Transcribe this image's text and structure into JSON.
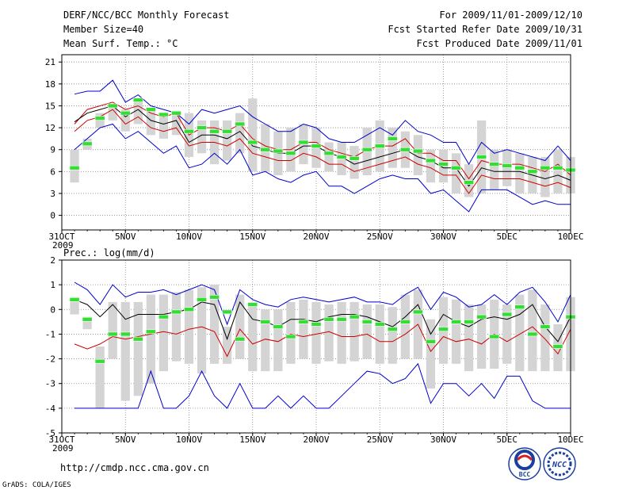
{
  "header": {
    "title": "DERF/NCC/BCC Monthly Forecast",
    "member_size": "Member Size=40",
    "variable": "Mean Surf. Temp.: °C",
    "period": "For 2009/11/01-2009/12/10",
    "started": "Fcst Started Refer Date 2009/10/31",
    "produced": "Fcst Produced Date 2009/11/01"
  },
  "footer": {
    "url": "http://cmdp.ncc.cma.gov.cn",
    "credit": "GrADS: COLA/IGES",
    "logo_bcc": "BCC",
    "logo_ncc": "NCC"
  },
  "colors": {
    "grid": "#888888",
    "box": "#d4d4d4",
    "mean": "#000000",
    "band": "#cc0000",
    "extreme": "#0000cc",
    "obs": "#33dd33"
  },
  "chart_data": [
    {
      "type": "line",
      "title": "Mean Surf. Temp.: °C",
      "ylim": [
        -2,
        22
      ],
      "yticks": [
        "0",
        "3",
        "6",
        "9",
        "12",
        "15",
        "18",
        "21"
      ],
      "xticks": [
        {
          "day": 0,
          "label": "31OCT",
          "sub": "2009"
        },
        {
          "day": 5,
          "label": "5NOV"
        },
        {
          "day": 10,
          "label": "10NOV"
        },
        {
          "day": 15,
          "label": "15NOV"
        },
        {
          "day": 20,
          "label": "20NOV"
        },
        {
          "day": 25,
          "label": "25NOV"
        },
        {
          "day": 30,
          "label": "30NOV"
        },
        {
          "day": 35,
          "label": "5DEC"
        },
        {
          "day": 40,
          "label": "10DEC"
        }
      ],
      "days": [
        1,
        2,
        3,
        4,
        5,
        6,
        7,
        8,
        9,
        10,
        11,
        12,
        13,
        14,
        15,
        16,
        17,
        18,
        19,
        20,
        21,
        22,
        23,
        24,
        25,
        26,
        27,
        28,
        29,
        30,
        31,
        32,
        33,
        34,
        35,
        36,
        37,
        38,
        39,
        40
      ],
      "series": [
        {
          "name": "max",
          "role": "extreme",
          "values": [
            16.6,
            17,
            17,
            18.5,
            15.5,
            16.5,
            15,
            14.5,
            14,
            12.5,
            14.5,
            14,
            14.5,
            15,
            13.5,
            12.5,
            11.5,
            11.5,
            12.5,
            12,
            10.5,
            10,
            10,
            11,
            12,
            11,
            13,
            11.5,
            11,
            10,
            10,
            7,
            10,
            8.5,
            9,
            8.5,
            8,
            7.5,
            9.5,
            7.5
          ]
        },
        {
          "name": "upper",
          "role": "band",
          "values": [
            12.5,
            14.5,
            15,
            15.5,
            14.5,
            15,
            14,
            13.5,
            14,
            11,
            12,
            12,
            11.5,
            12.5,
            10.5,
            9.5,
            9,
            9,
            10,
            10,
            9,
            8.5,
            8,
            9,
            9.5,
            9.5,
            10.5,
            8.5,
            8.5,
            7.5,
            7.5,
            5,
            7.5,
            7,
            7,
            7,
            6.5,
            6,
            7,
            5.5
          ]
        },
        {
          "name": "mean",
          "role": "mean",
          "values": [
            12.8,
            14,
            14.5,
            15,
            13.5,
            14.5,
            13,
            12.5,
            13,
            10,
            11,
            11,
            10.5,
            11.5,
            9.5,
            9,
            8.5,
            8.5,
            9.5,
            9.5,
            8.5,
            8,
            7,
            7.5,
            8,
            8.5,
            9,
            8,
            7.5,
            6.5,
            6.5,
            4,
            6.5,
            6,
            6,
            6,
            5.5,
            5,
            5.5,
            4.8
          ]
        },
        {
          "name": "lower",
          "role": "band",
          "values": [
            11.5,
            13,
            13.5,
            14.5,
            12.5,
            13.5,
            12,
            11.5,
            12,
            9.5,
            10,
            10,
            9.5,
            10.5,
            8.5,
            8,
            7.5,
            7.5,
            8.5,
            8,
            7,
            7,
            6,
            6.5,
            7,
            7.5,
            8,
            7,
            6.5,
            5.5,
            5.5,
            3,
            5.5,
            5,
            5,
            5,
            4.5,
            4,
            4.5,
            3.8
          ]
        },
        {
          "name": "min",
          "role": "extreme",
          "values": [
            9,
            10.5,
            12,
            12.5,
            10.5,
            11.5,
            10,
            8.5,
            9.5,
            6.5,
            7,
            8.5,
            7,
            9,
            5.5,
            6,
            5,
            4.5,
            5.5,
            6,
            4,
            4,
            3,
            4,
            5,
            5.5,
            5,
            5,
            3,
            3.5,
            2,
            0.5,
            3.5,
            3.5,
            3.5,
            2.5,
            1.5,
            2,
            1.5,
            1.5
          ]
        },
        {
          "name": "observed",
          "role": "obs",
          "values": [
            6.5,
            9.8,
            13.3,
            15,
            14,
            15.8,
            14.5,
            13.8,
            14,
            11.5,
            12,
            11.5,
            11.5,
            12.5,
            10,
            9,
            8.8,
            8.5,
            10,
            9.5,
            8.5,
            8,
            7.8,
            9,
            9.5,
            10.5,
            9,
            8.8,
            7.5,
            7,
            6.5,
            4.5,
            8,
            7,
            6.8,
            6.5,
            6,
            6.5,
            6.5,
            6.2
          ]
        }
      ],
      "boxes_lo": [
        4.5,
        9,
        12,
        13,
        11.5,
        12.5,
        11,
        10.5,
        11,
        8,
        8.5,
        7,
        7.5,
        8.5,
        6,
        6,
        5.5,
        6,
        7,
        6.5,
        6,
        5.5,
        5,
        5.5,
        6,
        6.5,
        6.5,
        5.5,
        4.5,
        4.5,
        3,
        2.5,
        3,
        3.5,
        4,
        3,
        3,
        2.5,
        3,
        3
      ],
      "boxes_hi": [
        9,
        10.5,
        14,
        15,
        14.5,
        15.5,
        14.5,
        13.5,
        14,
        14,
        13,
        13,
        13,
        14,
        16,
        12.5,
        11.5,
        12,
        12.5,
        12,
        10,
        10,
        9.5,
        12,
        13,
        12,
        11.5,
        11,
        9,
        9,
        8.5,
        7,
        13,
        9,
        9,
        8.5,
        8,
        8,
        9,
        8
      ]
    },
    {
      "type": "line",
      "title": "Prec.: log(mm/d)",
      "ylim": [
        -5,
        2
      ],
      "yticks": [
        "-5",
        "-4",
        "-3",
        "-2",
        "-1",
        "0",
        "1",
        "2"
      ],
      "xticks": [
        {
          "day": 0,
          "label": "31OCT",
          "sub": "2009"
        },
        {
          "day": 5,
          "label": "5NOV"
        },
        {
          "day": 10,
          "label": "10NOV"
        },
        {
          "day": 15,
          "label": "15NOV"
        },
        {
          "day": 20,
          "label": "20NOV"
        },
        {
          "day": 25,
          "label": "25NOV"
        },
        {
          "day": 30,
          "label": "30NOV"
        },
        {
          "day": 35,
          "label": "5DEC"
        },
        {
          "day": 40,
          "label": "10DEC"
        }
      ],
      "days": [
        1,
        2,
        3,
        4,
        5,
        6,
        7,
        8,
        9,
        10,
        11,
        12,
        13,
        14,
        15,
        16,
        17,
        18,
        19,
        20,
        21,
        22,
        23,
        24,
        25,
        26,
        27,
        28,
        29,
        30,
        31,
        32,
        33,
        34,
        35,
        36,
        37,
        38,
        39,
        40
      ],
      "series": [
        {
          "name": "max",
          "role": "extreme",
          "values": [
            1.1,
            0.8,
            0.2,
            1,
            0.5,
            0.7,
            0.7,
            0.8,
            0.6,
            0.8,
            1,
            0.8,
            -0.6,
            0.8,
            0.4,
            0.2,
            0.1,
            0.4,
            0.5,
            0.4,
            0.3,
            0.4,
            0.5,
            0.3,
            0.3,
            0.2,
            0.6,
            0.9,
            0,
            0.7,
            0.5,
            0.1,
            0.2,
            0.6,
            0.2,
            0.7,
            0.9,
            0.3,
            -0.5,
            0.6
          ]
        },
        {
          "name": "mean",
          "role": "mean",
          "values": [
            0.4,
            0.2,
            -0.3,
            0.2,
            -0.4,
            -0.2,
            -0.2,
            -0.2,
            -0.1,
            0,
            0.3,
            0.2,
            -1.2,
            0.3,
            -0.4,
            -0.5,
            -0.7,
            -0.4,
            -0.4,
            -0.5,
            -0.3,
            -0.2,
            -0.2,
            -0.3,
            -0.5,
            -0.7,
            -0.3,
            0.2,
            -1,
            -0.2,
            -0.5,
            -0.7,
            -0.4,
            -0.3,
            -0.4,
            -0.2,
            0.2,
            -0.7,
            -1.3,
            -0.3
          ]
        },
        {
          "name": "lower",
          "role": "band",
          "values": [
            -1.4,
            -1.6,
            -1.4,
            -1.1,
            -1.2,
            -1.1,
            -1,
            -0.9,
            -1,
            -0.8,
            -0.7,
            -0.9,
            -1.9,
            -0.8,
            -1.4,
            -1.2,
            -1.3,
            -1,
            -1.1,
            -1,
            -0.9,
            -1.1,
            -1.1,
            -1,
            -1.3,
            -1.3,
            -1,
            -0.6,
            -1.7,
            -1.1,
            -1.3,
            -1.2,
            -1.4,
            -1,
            -1.3,
            -1,
            -0.7,
            -1.2,
            -1.8,
            -0.8
          ]
        },
        {
          "name": "min",
          "role": "extreme",
          "values": [
            -4,
            -4,
            -4,
            -4,
            -4,
            -4,
            -2.5,
            -4,
            -4,
            -3.5,
            -2.5,
            -3.5,
            -4,
            -3,
            -4,
            -4,
            -3.5,
            -4,
            -3.5,
            -4,
            -4,
            -3.5,
            -3,
            -2.5,
            -2.6,
            -3,
            -2.8,
            -2.2,
            -3.8,
            -3,
            -3,
            -3.5,
            -3,
            -3.6,
            -2.7,
            -2.7,
            -3.7,
            -4,
            -4,
            -4
          ]
        },
        {
          "name": "observed",
          "role": "obs",
          "values": [
            0.4,
            -0.4,
            -2.1,
            -1,
            -1,
            -1.2,
            -0.9,
            -0.3,
            -0.1,
            0,
            0.4,
            0.5,
            -0.1,
            -1.2,
            0.2,
            -0.5,
            -0.7,
            -1.1,
            -0.5,
            -0.6,
            -0.4,
            -0.4,
            -0.3,
            -0.5,
            -0.6,
            -0.8,
            -0.5,
            -0.1,
            -1.3,
            -0.8,
            -0.5,
            -0.5,
            -0.3,
            -1.1,
            -0.2,
            0.1,
            -1,
            -0.7,
            -1.5,
            -0.3
          ]
        }
      ],
      "boxes_lo": [
        -0.2,
        -0.8,
        -4,
        -2,
        -3.7,
        -3.5,
        -3,
        -2.5,
        -2.1,
        -2.2,
        -2.6,
        -2.2,
        -2.2,
        -2,
        -2.5,
        -2.5,
        -2.5,
        -2.2,
        -2,
        -2.2,
        -2.1,
        -2.2,
        -2.1,
        -2,
        -2.2,
        -2.2,
        -2,
        -2,
        -3.2,
        -2.2,
        -2.2,
        -2.5,
        -2.4,
        -2.4,
        -2.2,
        -2.5,
        -2.5,
        -2.5,
        -2.5,
        -2.5
      ],
      "boxes_hi": [
        0.5,
        -0.3,
        -1.5,
        0.3,
        0.3,
        0.3,
        0.6,
        0.6,
        0.7,
        0.8,
        0.9,
        1,
        -0.7,
        0.6,
        0.3,
        0,
        0,
        0.3,
        0.4,
        0.3,
        0.2,
        0.3,
        0.3,
        0.2,
        0.2,
        0.1,
        0.6,
        0.8,
        -0.4,
        0.5,
        0.4,
        0.2,
        0.2,
        0.4,
        0.2,
        0.6,
        0.8,
        0.2,
        -0.6,
        0.5
      ]
    }
  ]
}
